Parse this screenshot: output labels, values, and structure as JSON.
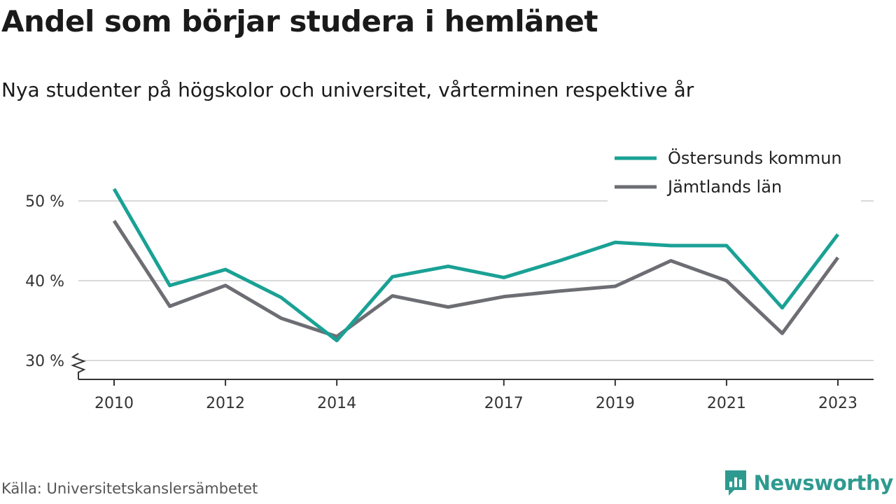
{
  "title": "Andel som börjar studera i hemlänet",
  "subtitle": "Nya studenter på högskolor och universitet, vårterminen respektive år",
  "source": "Källa: Universitetskanslersämbetet",
  "brand": {
    "name": "Newsworthy",
    "icon": "newsworthy-logo-icon",
    "color": "#2e9a8f"
  },
  "colors": {
    "series1": "#1aa195",
    "series2": "#6d6e73",
    "grid": "#d9d9d9",
    "axis": "#333333"
  },
  "chart_data": {
    "type": "line",
    "x": [
      2010,
      2011,
      2012,
      2013,
      2014,
      2015,
      2016,
      2017,
      2018,
      2019,
      2020,
      2021,
      2022,
      2023
    ],
    "series": [
      {
        "name": "Östersunds kommun",
        "values": [
          51.5,
          39.4,
          41.4,
          37.9,
          32.5,
          40.5,
          41.8,
          40.4,
          42.5,
          44.8,
          44.4,
          44.4,
          36.6,
          45.8
        ]
      },
      {
        "name": "Jämtlands län",
        "values": [
          47.5,
          36.8,
          39.4,
          35.3,
          33.0,
          38.1,
          36.7,
          38.0,
          38.7,
          39.3,
          42.5,
          40.0,
          33.4,
          42.9
        ]
      }
    ],
    "y_ticks": [
      30,
      40,
      50
    ],
    "y_tick_labels": [
      "30 %",
      "40 %",
      "50 %"
    ],
    "x_ticks": [
      2010,
      2012,
      2014,
      2017,
      2019,
      2021,
      2023
    ],
    "x_tick_labels": [
      "2010",
      "2012",
      "2014",
      "2017",
      "2019",
      "2021",
      "2023"
    ],
    "ylim": [
      30,
      52
    ],
    "y_axis_break": true,
    "grid": true,
    "legend": "top-right"
  }
}
